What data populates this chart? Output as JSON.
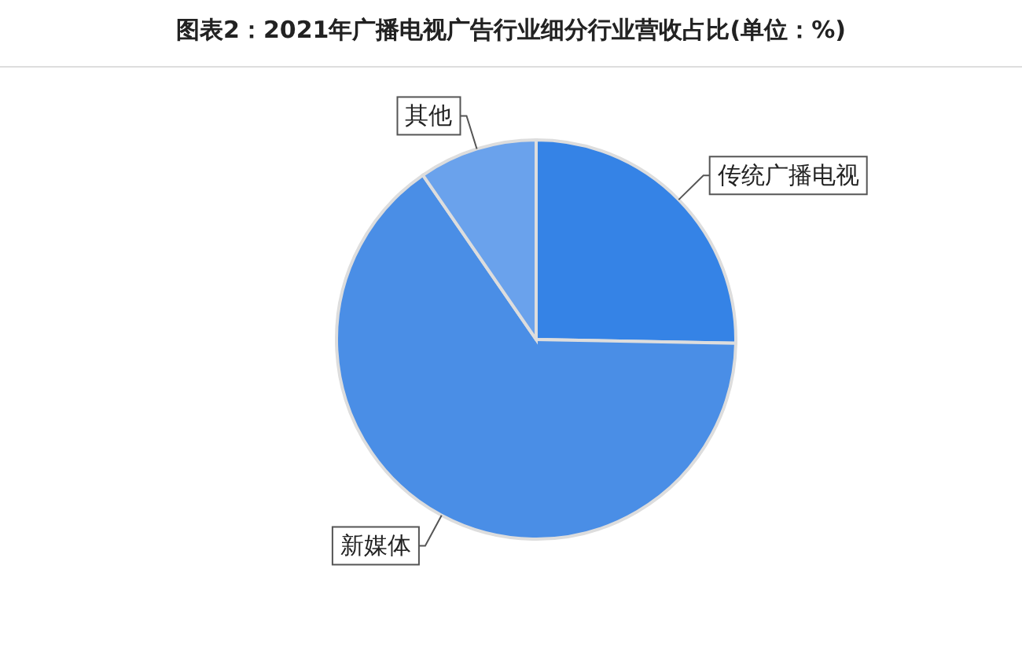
{
  "chart_data": {
    "type": "pie",
    "title": "图表2：2021年广播电视广告行业细分行业营收占比(单位：%)",
    "categories": [
      "传统广播电视",
      "新媒体",
      "其他"
    ],
    "values": [
      25.3,
      65.1,
      9.6
    ],
    "colors": [
      "#3583e6",
      "#4a8ee6",
      "#6aa2ec"
    ]
  }
}
